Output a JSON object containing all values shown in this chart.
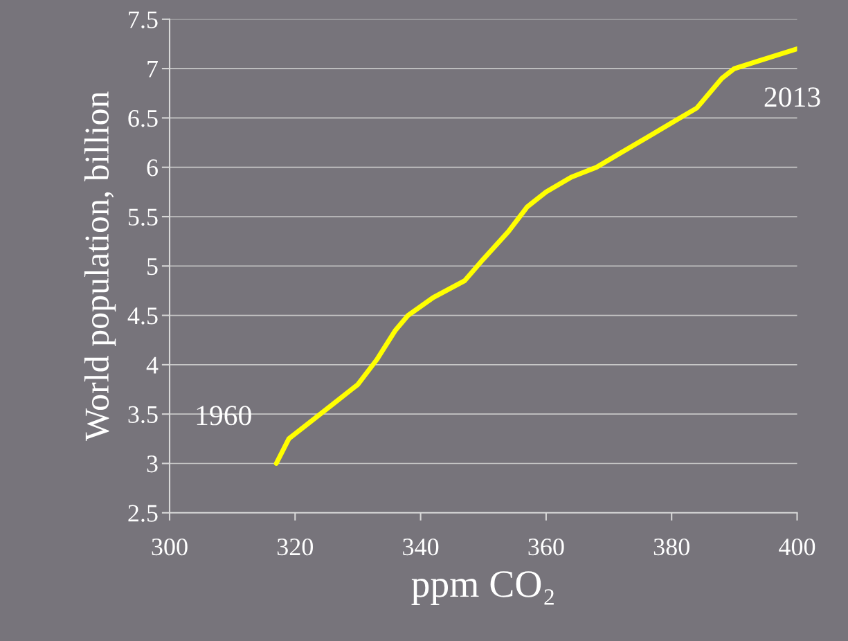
{
  "chart_data": {
    "type": "line",
    "xlabel": "ppm CO₂",
    "ylabel": "World population, billion",
    "x": [
      317,
      319,
      322,
      326,
      330,
      333,
      336,
      338,
      342,
      347,
      350,
      354,
      357,
      360,
      364,
      368,
      372,
      376,
      380,
      384,
      386,
      388,
      390,
      394,
      400
    ],
    "series": [
      {
        "color": "#ffff00",
        "values": [
          3.0,
          3.25,
          3.4,
          3.6,
          3.8,
          4.05,
          4.35,
          4.5,
          4.68,
          4.85,
          5.07,
          5.35,
          5.6,
          5.75,
          5.9,
          6.0,
          6.15,
          6.3,
          6.45,
          6.6,
          6.75,
          6.9,
          7.0,
          7.08,
          7.2
        ]
      }
    ],
    "xlim": [
      300,
      400
    ],
    "xticks": [
      300,
      320,
      340,
      360,
      380,
      400
    ],
    "ylim": [
      2.5,
      7.5
    ],
    "yticks": [
      2.5,
      3,
      3.5,
      4,
      4.5,
      5,
      5.5,
      6,
      6.5,
      7,
      7.5
    ],
    "grid": "y",
    "marker": "none",
    "line_style": "solid",
    "annotations": [
      {
        "text": "1960",
        "x": 317,
        "y": 3.0
      },
      {
        "text": "2013",
        "x": 400,
        "y": 7.2
      }
    ]
  }
}
